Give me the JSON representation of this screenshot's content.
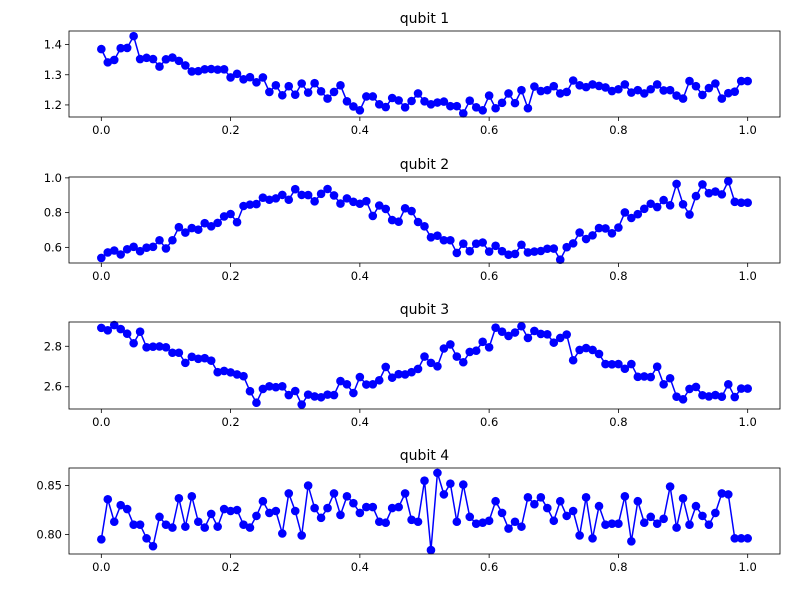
{
  "chart_data": [
    {
      "type": "line",
      "title": "qubit 1",
      "xlabel": "",
      "ylabel": "",
      "xlim": [
        -0.05,
        1.05
      ],
      "ylim": [
        1.16,
        1.445
      ],
      "xticks": [
        0.0,
        0.2,
        0.4,
        0.6,
        0.8,
        1.0
      ],
      "xtick_labels": [
        "0.0",
        "0.2",
        "0.4",
        "0.6",
        "0.8",
        "1.0"
      ],
      "yticks": [
        1.2,
        1.3,
        1.4
      ],
      "ytick_labels": [
        "1.2",
        "1.3",
        "1.4"
      ],
      "grid": false,
      "marker": "circle",
      "color": "#0000ff",
      "x_range": [
        0,
        1
      ],
      "n_points": 101,
      "series": [
        {
          "values": [
            1.385,
            1.341,
            1.349,
            1.388,
            1.389,
            1.428,
            1.352,
            1.356,
            1.352,
            1.327,
            1.351,
            1.357,
            1.346,
            1.331,
            1.311,
            1.312,
            1.318,
            1.319,
            1.317,
            1.318,
            1.291,
            1.303,
            1.285,
            1.292,
            1.275,
            1.291,
            1.243,
            1.265,
            1.232,
            1.262,
            1.234,
            1.271,
            1.241,
            1.272,
            1.245,
            1.221,
            1.243,
            1.265,
            1.212,
            1.195,
            1.182,
            1.228,
            1.228,
            1.202,
            1.193,
            1.223,
            1.215,
            1.192,
            1.213,
            1.238,
            1.212,
            1.202,
            1.208,
            1.211,
            1.196,
            1.196,
            1.172,
            1.214,
            1.192,
            1.182,
            1.231,
            1.189,
            1.207,
            1.238,
            1.206,
            1.249,
            1.189,
            1.261,
            1.246,
            1.249,
            1.262,
            1.238,
            1.243,
            1.281,
            1.265,
            1.259,
            1.268,
            1.263,
            1.258,
            1.246,
            1.252,
            1.268,
            1.241,
            1.249,
            1.238,
            1.252,
            1.268,
            1.248,
            1.249,
            1.231,
            1.221,
            1.279,
            1.262,
            1.233,
            1.256,
            1.271,
            1.221,
            1.239,
            1.244,
            1.279,
            1.279
          ]
        }
      ]
    },
    {
      "type": "line",
      "title": "qubit 2",
      "xlabel": "",
      "ylabel": "",
      "xlim": [
        -0.05,
        1.05
      ],
      "ylim": [
        0.51,
        1.005
      ],
      "xticks": [
        0.0,
        0.2,
        0.4,
        0.6,
        0.8,
        1.0
      ],
      "xtick_labels": [
        "0.0",
        "0.2",
        "0.4",
        "0.6",
        "0.8",
        "1.0"
      ],
      "yticks": [
        0.6,
        0.8,
        1.0
      ],
      "ytick_labels": [
        "0.6",
        "0.8",
        "1.0"
      ],
      "grid": false,
      "marker": "circle",
      "color": "#0000ff",
      "x_range": [
        0,
        1
      ],
      "n_points": 101,
      "series": [
        {
          "values": [
            0.539,
            0.571,
            0.582,
            0.559,
            0.589,
            0.603,
            0.578,
            0.598,
            0.603,
            0.641,
            0.594,
            0.641,
            0.716,
            0.685,
            0.711,
            0.702,
            0.739,
            0.721,
            0.741,
            0.778,
            0.792,
            0.745,
            0.838,
            0.846,
            0.849,
            0.886,
            0.874,
            0.882,
            0.902,
            0.874,
            0.935,
            0.902,
            0.901,
            0.865,
            0.908,
            0.936,
            0.899,
            0.852,
            0.882,
            0.862,
            0.851,
            0.866,
            0.781,
            0.841,
            0.821,
            0.757,
            0.748,
            0.825,
            0.809,
            0.746,
            0.721,
            0.658,
            0.667,
            0.641,
            0.641,
            0.568,
            0.621,
            0.578,
            0.621,
            0.628,
            0.576,
            0.609,
            0.578,
            0.558,
            0.562,
            0.615,
            0.571,
            0.576,
            0.579,
            0.592,
            0.593,
            0.529,
            0.601,
            0.623,
            0.685,
            0.648,
            0.669,
            0.711,
            0.709,
            0.681,
            0.714,
            0.801,
            0.769,
            0.791,
            0.822,
            0.851,
            0.832,
            0.872,
            0.842,
            0.965,
            0.848,
            0.789,
            0.895,
            0.962,
            0.912,
            0.921,
            0.905,
            0.981,
            0.862,
            0.857,
            0.857
          ]
        }
      ]
    },
    {
      "type": "line",
      "title": "qubit 3",
      "xlabel": "",
      "ylabel": "",
      "xlim": [
        -0.05,
        1.05
      ],
      "ylim": [
        2.49,
        2.92
      ],
      "xticks": [
        0.0,
        0.2,
        0.4,
        0.6,
        0.8,
        1.0
      ],
      "xtick_labels": [
        "0.0",
        "0.2",
        "0.4",
        "0.6",
        "0.8",
        "1.0"
      ],
      "yticks": [
        2.6,
        2.8
      ],
      "ytick_labels": [
        "2.6",
        "2.8"
      ],
      "grid": false,
      "marker": "circle",
      "color": "#0000ff",
      "x_range": [
        0,
        1
      ],
      "n_points": 101,
      "series": [
        {
          "values": [
            2.891,
            2.879,
            2.905,
            2.885,
            2.862,
            2.815,
            2.872,
            2.795,
            2.798,
            2.799,
            2.795,
            2.768,
            2.768,
            2.718,
            2.748,
            2.738,
            2.741,
            2.729,
            2.672,
            2.678,
            2.671,
            2.661,
            2.652,
            2.578,
            2.521,
            2.589,
            2.602,
            2.598,
            2.602,
            2.559,
            2.579,
            2.512,
            2.561,
            2.552,
            2.548,
            2.561,
            2.559,
            2.628,
            2.612,
            2.569,
            2.648,
            2.611,
            2.612,
            2.632,
            2.698,
            2.645,
            2.662,
            2.661,
            2.672,
            2.688,
            2.749,
            2.718,
            2.701,
            2.789,
            2.809,
            2.749,
            2.721,
            2.772,
            2.778,
            2.822,
            2.795,
            2.892,
            2.872,
            2.851,
            2.868,
            2.899,
            2.841,
            2.876,
            2.861,
            2.859,
            2.818,
            2.841,
            2.858,
            2.731,
            2.782,
            2.791,
            2.782,
            2.762,
            2.712,
            2.711,
            2.712,
            2.689,
            2.712,
            2.649,
            2.651,
            2.648,
            2.699,
            2.612,
            2.642,
            2.551,
            2.538,
            2.589,
            2.599,
            2.558,
            2.552,
            2.559,
            2.551,
            2.612,
            2.549,
            2.591,
            2.591
          ]
        }
      ]
    },
    {
      "type": "line",
      "title": "qubit 4",
      "xlabel": "",
      "ylabel": "",
      "xlim": [
        -0.05,
        1.05
      ],
      "ylim": [
        0.78,
        0.868
      ],
      "xticks": [
        0.0,
        0.2,
        0.4,
        0.6,
        0.8,
        1.0
      ],
      "xtick_labels": [
        "0.0",
        "0.2",
        "0.4",
        "0.6",
        "0.8",
        "1.0"
      ],
      "yticks": [
        0.8,
        0.85
      ],
      "ytick_labels": [
        "0.80",
        "0.85"
      ],
      "grid": false,
      "marker": "circle",
      "color": "#0000ff",
      "x_range": [
        0,
        1
      ],
      "n_points": 101,
      "series": [
        {
          "values": [
            0.795,
            0.836,
            0.813,
            0.83,
            0.826,
            0.81,
            0.81,
            0.796,
            0.788,
            0.818,
            0.81,
            0.807,
            0.837,
            0.808,
            0.839,
            0.813,
            0.807,
            0.821,
            0.808,
            0.826,
            0.824,
            0.825,
            0.81,
            0.807,
            0.819,
            0.834,
            0.822,
            0.824,
            0.801,
            0.842,
            0.824,
            0.799,
            0.85,
            0.827,
            0.817,
            0.827,
            0.842,
            0.82,
            0.839,
            0.832,
            0.822,
            0.828,
            0.828,
            0.813,
            0.812,
            0.827,
            0.828,
            0.842,
            0.815,
            0.813,
            0.855,
            0.784,
            0.863,
            0.841,
            0.852,
            0.813,
            0.851,
            0.818,
            0.811,
            0.812,
            0.814,
            0.834,
            0.822,
            0.806,
            0.813,
            0.808,
            0.838,
            0.831,
            0.838,
            0.827,
            0.814,
            0.834,
            0.819,
            0.824,
            0.799,
            0.838,
            0.796,
            0.829,
            0.81,
            0.811,
            0.811,
            0.839,
            0.793,
            0.834,
            0.812,
            0.818,
            0.811,
            0.816,
            0.849,
            0.807,
            0.837,
            0.81,
            0.829,
            0.819,
            0.81,
            0.822,
            0.842,
            0.841,
            0.796,
            0.796,
            0.796
          ]
        }
      ]
    }
  ]
}
